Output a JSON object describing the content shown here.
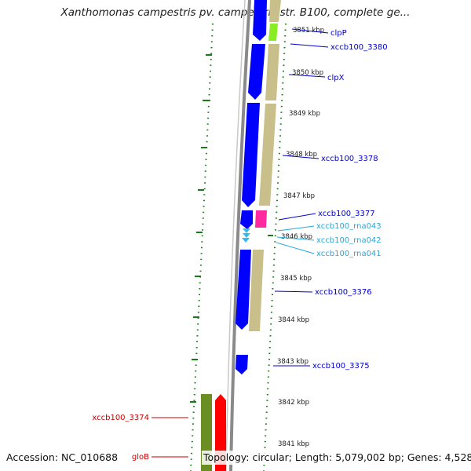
{
  "title": "Xanthomonas campestris pv. campestris str. B100, complete ge...",
  "footer": {
    "accession": "Accession: NC_010688",
    "topology": "Topology: circular; Length: 5,079,002 bp; Genes: 4,528"
  },
  "ticks": [
    {
      "label": "3851 kbp"
    },
    {
      "label": "3850 kbp"
    },
    {
      "label": "3849 kbp"
    },
    {
      "label": "3848 kbp"
    },
    {
      "label": "3847 kbp"
    },
    {
      "label": "3846 kbp"
    },
    {
      "label": "3845 kbp"
    },
    {
      "label": "3844 kbp"
    },
    {
      "label": "3843 kbp"
    },
    {
      "label": "3842 kbp"
    },
    {
      "label": "3841 kbp"
    }
  ],
  "genes": [
    {
      "label": "clpP",
      "color": "#0000cc"
    },
    {
      "label": "xccb100_3380",
      "color": "#0000cc"
    },
    {
      "label": "clpX",
      "color": "#0000cc"
    },
    {
      "label": "xccb100_3378",
      "color": "#0000cc"
    },
    {
      "label": "xccb100_3377",
      "color": "#0000cc"
    },
    {
      "label": "xccb100_rna043",
      "color": "#22aadd"
    },
    {
      "label": "xccb100_rna042",
      "color": "#22aadd"
    },
    {
      "label": "xccb100_rna041",
      "color": "#22aadd"
    },
    {
      "label": "xccb100_3376",
      "color": "#0000cc"
    },
    {
      "label": "xccb100_3375",
      "color": "#0000cc"
    },
    {
      "label": "xccb100_3374",
      "color": "#cc0000"
    },
    {
      "label": "gloB",
      "color": "#cc0000"
    }
  ],
  "colors": {
    "cds": "#0000ff",
    "orf": "#c8bf8a",
    "rrna": "#ff2aa0",
    "trna": "#33bbee",
    "pseudo": "#88ee22",
    "olive": "#6b8e23",
    "red": "#ff0000",
    "backbone": "#8a8a8a",
    "gc_dots": "#1a7a1a"
  }
}
